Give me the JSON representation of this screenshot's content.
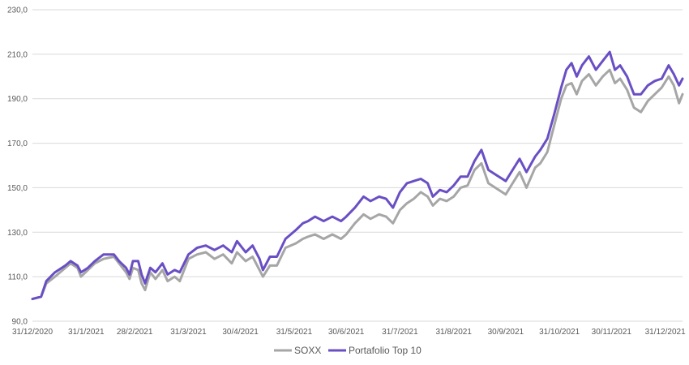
{
  "chart_data": {
    "type": "line",
    "title": "",
    "xlabel": "",
    "ylabel": "",
    "ylim": [
      90,
      230
    ],
    "yticks": [
      "90,0",
      "110,0",
      "130,0",
      "150,0",
      "170,0",
      "190,0",
      "210,0",
      "230,0"
    ],
    "ytick_values": [
      90,
      110,
      130,
      150,
      170,
      190,
      210,
      230
    ],
    "xticks": [
      "31/12/2020",
      "31/1/2021",
      "28/2/2021",
      "31/3/2021",
      "30/4/2021",
      "31/5/2021",
      "30/6/2021",
      "31/7/2021",
      "31/8/2021",
      "30/9/2021",
      "31/10/2021",
      "30/11/2021",
      "31/12/2021"
    ],
    "xtick_dates": [
      "2020-12-31",
      "2021-01-31",
      "2021-02-28",
      "2021-03-31",
      "2021-04-30",
      "2021-05-31",
      "2021-06-30",
      "2021-07-31",
      "2021-08-31",
      "2021-09-30",
      "2021-10-31",
      "2021-11-30",
      "2021-12-31"
    ],
    "grid": true,
    "legend_position": "bottom",
    "series": [
      {
        "name": "SOXX",
        "color": "#a6a6a6",
        "points": [
          [
            "2020-12-31",
            100
          ],
          [
            "2021-01-05",
            101
          ],
          [
            "2021-01-08",
            107
          ],
          [
            "2021-01-13",
            110
          ],
          [
            "2021-01-19",
            114
          ],
          [
            "2021-01-22",
            116
          ],
          [
            "2021-01-26",
            114
          ],
          [
            "2021-01-28",
            110
          ],
          [
            "2021-02-01",
            113
          ],
          [
            "2021-02-05",
            116
          ],
          [
            "2021-02-10",
            118
          ],
          [
            "2021-02-16",
            119
          ],
          [
            "2021-02-19",
            116
          ],
          [
            "2021-02-23",
            112
          ],
          [
            "2021-02-25",
            109
          ],
          [
            "2021-02-27",
            114
          ],
          [
            "2021-03-02",
            113
          ],
          [
            "2021-03-04",
            107
          ],
          [
            "2021-03-06",
            104
          ],
          [
            "2021-03-09",
            112
          ],
          [
            "2021-03-12",
            109
          ],
          [
            "2021-03-16",
            113
          ],
          [
            "2021-03-19",
            108
          ],
          [
            "2021-03-23",
            110
          ],
          [
            "2021-03-26",
            108
          ],
          [
            "2021-03-31",
            118
          ],
          [
            "2021-04-05",
            120
          ],
          [
            "2021-04-10",
            121
          ],
          [
            "2021-04-15",
            118
          ],
          [
            "2021-04-20",
            120
          ],
          [
            "2021-04-25",
            116
          ],
          [
            "2021-04-28",
            121
          ],
          [
            "2021-05-03",
            117
          ],
          [
            "2021-05-07",
            119
          ],
          [
            "2021-05-11",
            113
          ],
          [
            "2021-05-13",
            110
          ],
          [
            "2021-05-17",
            115
          ],
          [
            "2021-05-21",
            115
          ],
          [
            "2021-05-26",
            123
          ],
          [
            "2021-06-01",
            125
          ],
          [
            "2021-06-05",
            127
          ],
          [
            "2021-06-08",
            128
          ],
          [
            "2021-06-12",
            129
          ],
          [
            "2021-06-17",
            127
          ],
          [
            "2021-06-22",
            129
          ],
          [
            "2021-06-27",
            127
          ],
          [
            "2021-06-30",
            129
          ],
          [
            "2021-07-05",
            134
          ],
          [
            "2021-07-10",
            138
          ],
          [
            "2021-07-14",
            136
          ],
          [
            "2021-07-19",
            138
          ],
          [
            "2021-07-23",
            137
          ],
          [
            "2021-07-27",
            134
          ],
          [
            "2021-07-31",
            140
          ],
          [
            "2021-08-04",
            143
          ],
          [
            "2021-08-08",
            145
          ],
          [
            "2021-08-12",
            148
          ],
          [
            "2021-08-16",
            146
          ],
          [
            "2021-08-19",
            142
          ],
          [
            "2021-08-23",
            145
          ],
          [
            "2021-08-27",
            144
          ],
          [
            "2021-08-31",
            146
          ],
          [
            "2021-09-04",
            150
          ],
          [
            "2021-09-08",
            151
          ],
          [
            "2021-09-12",
            158
          ],
          [
            "2021-09-16",
            161
          ],
          [
            "2021-09-20",
            152
          ],
          [
            "2021-09-24",
            150
          ],
          [
            "2021-09-30",
            147
          ],
          [
            "2021-10-04",
            152
          ],
          [
            "2021-10-08",
            157
          ],
          [
            "2021-10-12",
            150
          ],
          [
            "2021-10-17",
            159
          ],
          [
            "2021-10-20",
            161
          ],
          [
            "2021-10-24",
            166
          ],
          [
            "2021-10-28",
            178
          ],
          [
            "2021-11-01",
            190
          ],
          [
            "2021-11-04",
            196
          ],
          [
            "2021-11-07",
            197
          ],
          [
            "2021-11-10",
            192
          ],
          [
            "2021-11-13",
            198
          ],
          [
            "2021-11-17",
            201
          ],
          [
            "2021-11-21",
            196
          ],
          [
            "2021-11-25",
            200
          ],
          [
            "2021-11-29",
            203
          ],
          [
            "2021-12-02",
            197
          ],
          [
            "2021-12-05",
            199
          ],
          [
            "2021-12-09",
            194
          ],
          [
            "2021-12-13",
            186
          ],
          [
            "2021-12-17",
            184
          ],
          [
            "2021-12-21",
            189
          ],
          [
            "2021-12-25",
            192
          ],
          [
            "2021-12-29",
            195
          ],
          [
            "2022-01-02",
            200
          ],
          [
            "2022-01-05",
            196
          ],
          [
            "2022-01-08",
            188
          ],
          [
            "2022-01-10",
            192
          ]
        ]
      },
      {
        "name": "Portafolio Top 10",
        "color": "#6a4fc4",
        "points": [
          [
            "2020-12-31",
            100
          ],
          [
            "2021-01-05",
            101
          ],
          [
            "2021-01-08",
            108
          ],
          [
            "2021-01-13",
            112
          ],
          [
            "2021-01-19",
            115
          ],
          [
            "2021-01-22",
            117
          ],
          [
            "2021-01-26",
            115
          ],
          [
            "2021-01-28",
            112
          ],
          [
            "2021-02-01",
            114
          ],
          [
            "2021-02-05",
            117
          ],
          [
            "2021-02-10",
            120
          ],
          [
            "2021-02-16",
            120
          ],
          [
            "2021-02-19",
            117
          ],
          [
            "2021-02-23",
            114
          ],
          [
            "2021-02-25",
            111
          ],
          [
            "2021-02-27",
            117
          ],
          [
            "2021-03-02",
            117
          ],
          [
            "2021-03-04",
            111
          ],
          [
            "2021-03-06",
            107
          ],
          [
            "2021-03-09",
            114
          ],
          [
            "2021-03-12",
            112
          ],
          [
            "2021-03-16",
            116
          ],
          [
            "2021-03-19",
            111
          ],
          [
            "2021-03-23",
            113
          ],
          [
            "2021-03-26",
            112
          ],
          [
            "2021-03-31",
            120
          ],
          [
            "2021-04-05",
            123
          ],
          [
            "2021-04-10",
            124
          ],
          [
            "2021-04-15",
            122
          ],
          [
            "2021-04-20",
            124
          ],
          [
            "2021-04-25",
            121
          ],
          [
            "2021-04-28",
            126
          ],
          [
            "2021-05-03",
            121
          ],
          [
            "2021-05-07",
            124
          ],
          [
            "2021-05-11",
            118
          ],
          [
            "2021-05-13",
            113
          ],
          [
            "2021-05-17",
            119
          ],
          [
            "2021-05-21",
            119
          ],
          [
            "2021-05-26",
            127
          ],
          [
            "2021-06-01",
            131
          ],
          [
            "2021-06-05",
            134
          ],
          [
            "2021-06-08",
            135
          ],
          [
            "2021-06-12",
            137
          ],
          [
            "2021-06-17",
            135
          ],
          [
            "2021-06-22",
            137
          ],
          [
            "2021-06-27",
            135
          ],
          [
            "2021-06-30",
            137
          ],
          [
            "2021-07-05",
            141
          ],
          [
            "2021-07-10",
            146
          ],
          [
            "2021-07-14",
            144
          ],
          [
            "2021-07-19",
            146
          ],
          [
            "2021-07-23",
            145
          ],
          [
            "2021-07-27",
            141
          ],
          [
            "2021-07-31",
            148
          ],
          [
            "2021-08-04",
            152
          ],
          [
            "2021-08-08",
            153
          ],
          [
            "2021-08-12",
            154
          ],
          [
            "2021-08-16",
            152
          ],
          [
            "2021-08-19",
            146
          ],
          [
            "2021-08-23",
            149
          ],
          [
            "2021-08-27",
            148
          ],
          [
            "2021-08-31",
            151
          ],
          [
            "2021-09-04",
            155
          ],
          [
            "2021-09-08",
            155
          ],
          [
            "2021-09-12",
            162
          ],
          [
            "2021-09-16",
            167
          ],
          [
            "2021-09-20",
            158
          ],
          [
            "2021-09-24",
            156
          ],
          [
            "2021-09-30",
            153
          ],
          [
            "2021-10-04",
            158
          ],
          [
            "2021-10-08",
            163
          ],
          [
            "2021-10-12",
            157
          ],
          [
            "2021-10-17",
            164
          ],
          [
            "2021-10-20",
            167
          ],
          [
            "2021-10-24",
            172
          ],
          [
            "2021-10-28",
            183
          ],
          [
            "2021-11-01",
            195
          ],
          [
            "2021-11-04",
            203
          ],
          [
            "2021-11-07",
            206
          ],
          [
            "2021-11-10",
            200
          ],
          [
            "2021-11-13",
            205
          ],
          [
            "2021-11-17",
            209
          ],
          [
            "2021-11-21",
            203
          ],
          [
            "2021-11-25",
            207
          ],
          [
            "2021-11-29",
            211
          ],
          [
            "2021-12-02",
            203
          ],
          [
            "2021-12-05",
            205
          ],
          [
            "2021-12-09",
            200
          ],
          [
            "2021-12-13",
            192
          ],
          [
            "2021-12-17",
            192
          ],
          [
            "2021-12-21",
            196
          ],
          [
            "2021-12-25",
            198
          ],
          [
            "2021-12-29",
            199
          ],
          [
            "2022-01-02",
            205
          ],
          [
            "2022-01-05",
            201
          ],
          [
            "2022-01-08",
            196
          ],
          [
            "2022-01-10",
            199
          ]
        ]
      }
    ]
  }
}
